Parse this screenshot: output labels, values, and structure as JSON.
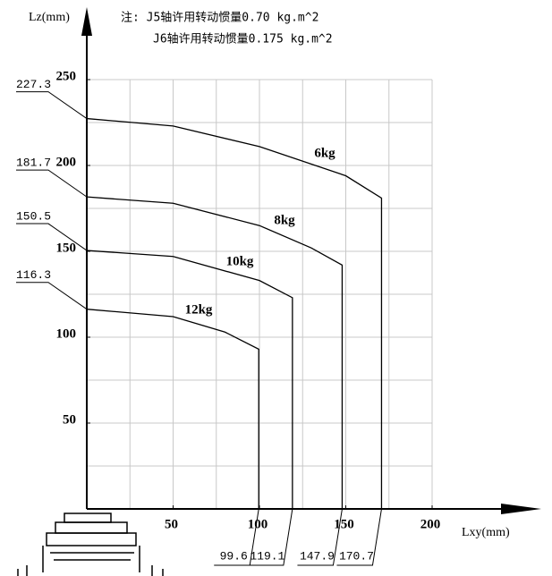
{
  "chart_data": {
    "type": "line",
    "notes": [
      "注: J5轴许用转动惯量0.70 kg.m^2",
      "J6轴许用转动惯量0.175 kg.m^2"
    ],
    "x_label": "Lxy(mm)",
    "y_label": "Lz(mm)",
    "xlim": [
      0,
      200
    ],
    "ylim": [
      0,
      250
    ],
    "xticks": [
      50,
      100,
      150,
      200
    ],
    "yticks": [
      50,
      100,
      150,
      200,
      250
    ],
    "grid": true,
    "grid_step": 25,
    "series": [
      {
        "name": "6kg",
        "color": "#000000",
        "x": [
          0,
          50,
          100,
          150,
          170.7,
          170.7
        ],
        "values": [
          227.3,
          223,
          211,
          194,
          181,
          0
        ]
      },
      {
        "name": "8kg",
        "color": "#000000",
        "x": [
          0,
          50,
          100,
          130,
          147.9,
          147.9
        ],
        "values": [
          181.7,
          178,
          165,
          152,
          142,
          0
        ]
      },
      {
        "name": "10kg",
        "color": "#000000",
        "x": [
          0,
          50,
          100,
          119.1,
          119.1
        ],
        "values": [
          150.5,
          147,
          133,
          123,
          0
        ]
      },
      {
        "name": "12kg",
        "color": "#000000",
        "x": [
          0,
          50,
          80,
          99.6,
          99.6
        ],
        "values": [
          116.3,
          112,
          103,
          93,
          0
        ]
      }
    ],
    "y_annotations": [
      {
        "value": 227.3,
        "label": "227.3"
      },
      {
        "value": 181.7,
        "label": "181.7"
      },
      {
        "value": 150.5,
        "label": "150.5"
      },
      {
        "value": 116.3,
        "label": "116.3"
      }
    ],
    "x_annotations": [
      {
        "value": 99.6,
        "label": "99.6"
      },
      {
        "value": 119.1,
        "label": "119.1"
      },
      {
        "value": 147.9,
        "label": "147.9"
      },
      {
        "value": 170.7,
        "label": "170.7"
      }
    ]
  }
}
